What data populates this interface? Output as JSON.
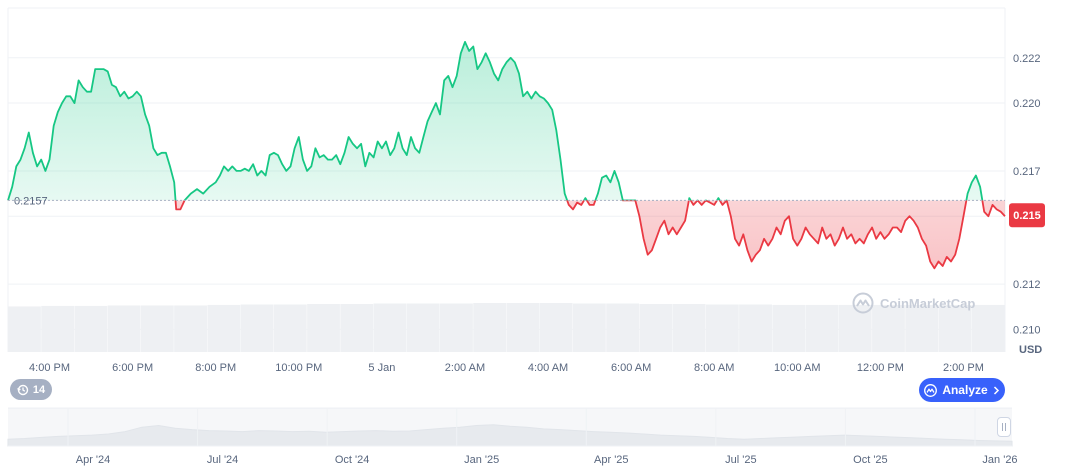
{
  "chart_data": {
    "type": "area",
    "currency_label": "USD",
    "baseline_value": 0.2157,
    "baseline_label": "0.2157",
    "current_value": 0.215,
    "current_label": "0.215",
    "ylim": [
      0.209,
      0.2242
    ],
    "y_ticks": [
      {
        "value": 0.21,
        "label": "0.210"
      },
      {
        "value": 0.212,
        "label": "0.212"
      },
      {
        "value": 0.215,
        "label": "0.215"
      },
      {
        "value": 0.217,
        "label": "0.217"
      },
      {
        "value": 0.22,
        "label": "0.220"
      },
      {
        "value": 0.222,
        "label": "0.222"
      }
    ],
    "x_range_hours": [
      0,
      24
    ],
    "x_ticks": [
      {
        "hour": 1.0,
        "label": "4:00 PM"
      },
      {
        "hour": 3.0,
        "label": "6:00 PM"
      },
      {
        "hour": 5.0,
        "label": "8:00 PM"
      },
      {
        "hour": 7.0,
        "label": "10:00 PM"
      },
      {
        "hour": 9.0,
        "label": "5 Jan"
      },
      {
        "hour": 11.0,
        "label": "2:00 AM"
      },
      {
        "hour": 13.0,
        "label": "4:00 AM"
      },
      {
        "hour": 15.0,
        "label": "6:00 AM"
      },
      {
        "hour": 17.0,
        "label": "8:00 AM"
      },
      {
        "hour": 19.0,
        "label": "10:00 AM"
      },
      {
        "hour": 21.0,
        "label": "12:00 PM"
      },
      {
        "hour": 23.0,
        "label": "2:00 PM"
      }
    ],
    "series": [
      {
        "points": [
          [
            0.0,
            0.2157
          ],
          [
            0.1,
            0.2163
          ],
          [
            0.2,
            0.2172
          ],
          [
            0.3,
            0.2175
          ],
          [
            0.4,
            0.218
          ],
          [
            0.5,
            0.2187
          ],
          [
            0.6,
            0.2178
          ],
          [
            0.7,
            0.2172
          ],
          [
            0.8,
            0.2175
          ],
          [
            0.9,
            0.217
          ],
          [
            1.0,
            0.2175
          ],
          [
            1.1,
            0.219
          ],
          [
            1.2,
            0.2196
          ],
          [
            1.3,
            0.22
          ],
          [
            1.4,
            0.2203
          ],
          [
            1.5,
            0.2203
          ],
          [
            1.6,
            0.22
          ],
          [
            1.7,
            0.221
          ],
          [
            1.8,
            0.2207
          ],
          [
            1.9,
            0.2205
          ],
          [
            2.0,
            0.2205
          ],
          [
            2.1,
            0.2215
          ],
          [
            2.2,
            0.2215
          ],
          [
            2.3,
            0.2215
          ],
          [
            2.4,
            0.2214
          ],
          [
            2.5,
            0.2208
          ],
          [
            2.6,
            0.2207
          ],
          [
            2.7,
            0.2203
          ],
          [
            2.8,
            0.2205
          ],
          [
            2.9,
            0.2202
          ],
          [
            3.0,
            0.2203
          ],
          [
            3.1,
            0.2205
          ],
          [
            3.2,
            0.2203
          ],
          [
            3.3,
            0.2195
          ],
          [
            3.4,
            0.219
          ],
          [
            3.5,
            0.218
          ],
          [
            3.6,
            0.2177
          ],
          [
            3.7,
            0.2178
          ],
          [
            3.8,
            0.2178
          ],
          [
            3.9,
            0.2172
          ],
          [
            4.0,
            0.2165
          ],
          [
            4.05,
            0.2153
          ],
          [
            4.15,
            0.2153
          ],
          [
            4.25,
            0.2157
          ],
          [
            4.4,
            0.216
          ],
          [
            4.55,
            0.2162
          ],
          [
            4.7,
            0.216
          ],
          [
            4.85,
            0.2163
          ],
          [
            5.0,
            0.2165
          ],
          [
            5.1,
            0.2168
          ],
          [
            5.2,
            0.2172
          ],
          [
            5.3,
            0.217
          ],
          [
            5.4,
            0.2172
          ],
          [
            5.5,
            0.217
          ],
          [
            5.6,
            0.217
          ],
          [
            5.7,
            0.2171
          ],
          [
            5.8,
            0.217
          ],
          [
            5.9,
            0.2173
          ],
          [
            6.0,
            0.2168
          ],
          [
            6.1,
            0.217
          ],
          [
            6.2,
            0.2168
          ],
          [
            6.3,
            0.2177
          ],
          [
            6.4,
            0.2178
          ],
          [
            6.5,
            0.2177
          ],
          [
            6.6,
            0.2173
          ],
          [
            6.7,
            0.217
          ],
          [
            6.8,
            0.2172
          ],
          [
            6.9,
            0.218
          ],
          [
            7.0,
            0.2185
          ],
          [
            7.1,
            0.2175
          ],
          [
            7.2,
            0.217
          ],
          [
            7.3,
            0.2172
          ],
          [
            7.4,
            0.218
          ],
          [
            7.5,
            0.2176
          ],
          [
            7.6,
            0.2177
          ],
          [
            7.7,
            0.2175
          ],
          [
            7.8,
            0.2175
          ],
          [
            7.9,
            0.2177
          ],
          [
            8.0,
            0.2173
          ],
          [
            8.1,
            0.2178
          ],
          [
            8.2,
            0.2185
          ],
          [
            8.3,
            0.2182
          ],
          [
            8.4,
            0.218
          ],
          [
            8.5,
            0.2182
          ],
          [
            8.6,
            0.2172
          ],
          [
            8.7,
            0.2178
          ],
          [
            8.8,
            0.2176
          ],
          [
            8.9,
            0.2183
          ],
          [
            9.0,
            0.218
          ],
          [
            9.1,
            0.2183
          ],
          [
            9.2,
            0.2177
          ],
          [
            9.3,
            0.218
          ],
          [
            9.4,
            0.2187
          ],
          [
            9.5,
            0.218
          ],
          [
            9.6,
            0.2177
          ],
          [
            9.7,
            0.2185
          ],
          [
            9.8,
            0.218
          ],
          [
            9.9,
            0.2178
          ],
          [
            10.0,
            0.2185
          ],
          [
            10.1,
            0.2192
          ],
          [
            10.2,
            0.2196
          ],
          [
            10.3,
            0.22
          ],
          [
            10.4,
            0.2195
          ],
          [
            10.5,
            0.221
          ],
          [
            10.6,
            0.2212
          ],
          [
            10.7,
            0.2207
          ],
          [
            10.8,
            0.2212
          ],
          [
            10.9,
            0.2222
          ],
          [
            11.0,
            0.2227
          ],
          [
            11.1,
            0.2223
          ],
          [
            11.2,
            0.2225
          ],
          [
            11.3,
            0.2215
          ],
          [
            11.4,
            0.2218
          ],
          [
            11.5,
            0.2222
          ],
          [
            11.6,
            0.2218
          ],
          [
            11.7,
            0.2213
          ],
          [
            11.8,
            0.221
          ],
          [
            11.9,
            0.2215
          ],
          [
            12.0,
            0.2218
          ],
          [
            12.1,
            0.222
          ],
          [
            12.2,
            0.2218
          ],
          [
            12.3,
            0.2213
          ],
          [
            12.4,
            0.2203
          ],
          [
            12.5,
            0.2205
          ],
          [
            12.6,
            0.2202
          ],
          [
            12.7,
            0.2205
          ],
          [
            12.8,
            0.2203
          ],
          [
            12.9,
            0.2202
          ],
          [
            13.0,
            0.22
          ],
          [
            13.1,
            0.2197
          ],
          [
            13.2,
            0.2188
          ],
          [
            13.3,
            0.2175
          ],
          [
            13.4,
            0.216
          ],
          [
            13.5,
            0.2155
          ],
          [
            13.6,
            0.2153
          ],
          [
            13.7,
            0.2156
          ],
          [
            13.8,
            0.2155
          ],
          [
            13.9,
            0.2158
          ],
          [
            14.0,
            0.2155
          ],
          [
            14.1,
            0.2155
          ],
          [
            14.2,
            0.216
          ],
          [
            14.3,
            0.2167
          ],
          [
            14.4,
            0.2168
          ],
          [
            14.5,
            0.2165
          ],
          [
            14.6,
            0.217
          ],
          [
            14.7,
            0.2165
          ],
          [
            14.8,
            0.2157
          ],
          [
            14.9,
            0.2157
          ],
          [
            15.0,
            0.2157
          ],
          [
            15.1,
            0.2157
          ],
          [
            15.2,
            0.215
          ],
          [
            15.3,
            0.214
          ],
          [
            15.4,
            0.2133
          ],
          [
            15.5,
            0.2135
          ],
          [
            15.6,
            0.214
          ],
          [
            15.7,
            0.2145
          ],
          [
            15.8,
            0.2148
          ],
          [
            15.9,
            0.2142
          ],
          [
            16.0,
            0.2145
          ],
          [
            16.1,
            0.2142
          ],
          [
            16.2,
            0.2145
          ],
          [
            16.3,
            0.2148
          ],
          [
            16.4,
            0.2158
          ],
          [
            16.5,
            0.2155
          ],
          [
            16.6,
            0.2157
          ],
          [
            16.7,
            0.2155
          ],
          [
            16.8,
            0.2157
          ],
          [
            16.9,
            0.2156
          ],
          [
            17.0,
            0.2155
          ],
          [
            17.1,
            0.2158
          ],
          [
            17.2,
            0.2155
          ],
          [
            17.3,
            0.2157
          ],
          [
            17.4,
            0.215
          ],
          [
            17.5,
            0.214
          ],
          [
            17.6,
            0.2137
          ],
          [
            17.7,
            0.2142
          ],
          [
            17.8,
            0.2135
          ],
          [
            17.9,
            0.213
          ],
          [
            18.0,
            0.2133
          ],
          [
            18.1,
            0.2135
          ],
          [
            18.2,
            0.214
          ],
          [
            18.3,
            0.2137
          ],
          [
            18.4,
            0.214
          ],
          [
            18.5,
            0.2145
          ],
          [
            18.6,
            0.2142
          ],
          [
            18.7,
            0.2148
          ],
          [
            18.8,
            0.215
          ],
          [
            18.9,
            0.214
          ],
          [
            19.0,
            0.2137
          ],
          [
            19.1,
            0.214
          ],
          [
            19.2,
            0.2145
          ],
          [
            19.3,
            0.2142
          ],
          [
            19.4,
            0.214
          ],
          [
            19.5,
            0.2138
          ],
          [
            19.6,
            0.2145
          ],
          [
            19.7,
            0.214
          ],
          [
            19.8,
            0.2142
          ],
          [
            19.9,
            0.2137
          ],
          [
            20.0,
            0.214
          ],
          [
            20.1,
            0.2145
          ],
          [
            20.2,
            0.214
          ],
          [
            20.3,
            0.2142
          ],
          [
            20.4,
            0.2138
          ],
          [
            20.5,
            0.214
          ],
          [
            20.6,
            0.2138
          ],
          [
            20.7,
            0.2142
          ],
          [
            20.8,
            0.2145
          ],
          [
            20.9,
            0.214
          ],
          [
            21.0,
            0.2143
          ],
          [
            21.1,
            0.214
          ],
          [
            21.2,
            0.2142
          ],
          [
            21.3,
            0.2145
          ],
          [
            21.4,
            0.2145
          ],
          [
            21.5,
            0.2143
          ],
          [
            21.6,
            0.2148
          ],
          [
            21.7,
            0.215
          ],
          [
            21.8,
            0.2148
          ],
          [
            21.9,
            0.2145
          ],
          [
            22.0,
            0.214
          ],
          [
            22.1,
            0.2137
          ],
          [
            22.2,
            0.213
          ],
          [
            22.3,
            0.2127
          ],
          [
            22.4,
            0.213
          ],
          [
            22.5,
            0.2128
          ],
          [
            22.6,
            0.2132
          ],
          [
            22.7,
            0.213
          ],
          [
            22.8,
            0.2133
          ],
          [
            22.9,
            0.214
          ],
          [
            23.0,
            0.215
          ],
          [
            23.1,
            0.216
          ],
          [
            23.2,
            0.2165
          ],
          [
            23.3,
            0.2168
          ],
          [
            23.4,
            0.2163
          ],
          [
            23.5,
            0.2152
          ],
          [
            23.6,
            0.215
          ],
          [
            23.7,
            0.2155
          ],
          [
            23.8,
            0.2153
          ],
          [
            23.9,
            0.2152
          ],
          [
            24.0,
            0.215
          ]
        ]
      }
    ],
    "volume": {
      "relative_values": [
        0.93,
        0.94,
        0.94,
        0.95,
        0.95,
        0.95,
        0.96,
        0.97,
        0.97,
        0.98,
        0.98,
        0.99,
        0.99,
        0.99,
        1.0,
        1.0,
        1.0,
        0.99,
        0.99,
        0.98,
        0.98,
        0.97,
        0.97,
        0.96,
        0.96,
        0.96,
        0.96,
        0.96,
        0.96,
        0.96
      ]
    },
    "navigator": {
      "x_ticks": [
        "Apr '24",
        "Jul '24",
        "Oct '24",
        "Jan '25",
        "Apr '25",
        "Jul '25",
        "Oct '25",
        "Jan '26"
      ],
      "relative_values": [
        0.2,
        0.22,
        0.25,
        0.28,
        0.3,
        0.32,
        0.35,
        0.42,
        0.55,
        0.6,
        0.52,
        0.48,
        0.45,
        0.44,
        0.42,
        0.45,
        0.44,
        0.42,
        0.43,
        0.4,
        0.42,
        0.44,
        0.45,
        0.43,
        0.44,
        0.48,
        0.52,
        0.55,
        0.6,
        0.62,
        0.58,
        0.55,
        0.5,
        0.48,
        0.45,
        0.42,
        0.4,
        0.38,
        0.35,
        0.32,
        0.3,
        0.28,
        0.25,
        0.22,
        0.2,
        0.22,
        0.24,
        0.26,
        0.28,
        0.3,
        0.32,
        0.3,
        0.28,
        0.26,
        0.24,
        0.22,
        0.2,
        0.18,
        0.16,
        0.15,
        0.14
      ]
    }
  },
  "controls": {
    "interval_label": "14",
    "analyze_label": "Analyze",
    "watermark": "CoinMarketCap",
    "colors": {
      "up": "#16c784",
      "down": "#ea3943",
      "accent": "#3861fb"
    }
  }
}
